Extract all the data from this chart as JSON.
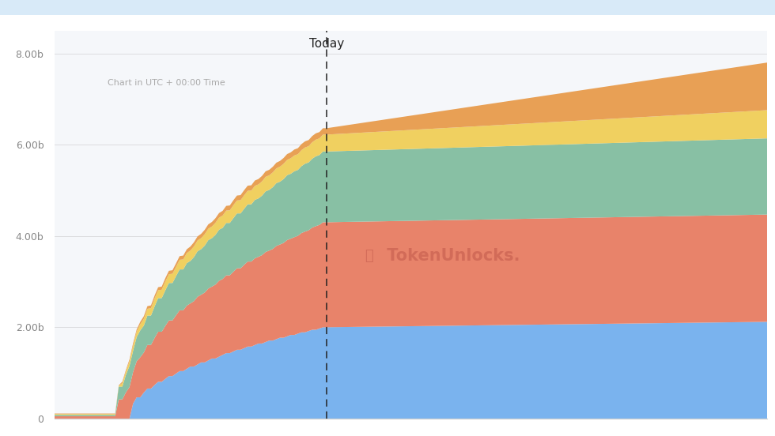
{
  "title": "Today",
  "subtitle": "Chart in UTC + 00:00 Time",
  "background_color": "#ffffff",
  "plot_bg_color": "#f5f7fa",
  "ytick_labels": [
    "0",
    "2.00b",
    "4.00b",
    "6.00b",
    "8.00b"
  ],
  "ytick_values": [
    0,
    2000000000,
    4000000000,
    6000000000,
    8000000000
  ],
  "colors": {
    "blue": "#7ab3ee",
    "salmon": "#e8836a",
    "green": "#88c0a4",
    "yellow": "#f0d060",
    "orange": "#e8a055"
  },
  "watermark_text": " TokenUnlocks.",
  "watermark_color": "#c0584a",
  "n_steps": 200,
  "today_step": 76,
  "top_bar_color": "#d8eaf8"
}
